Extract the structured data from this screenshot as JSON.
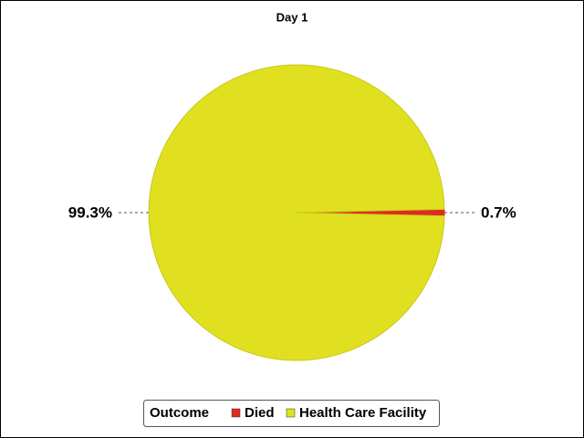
{
  "chart_data": {
    "type": "pie",
    "title": "Day 1",
    "categories": [
      "Died",
      "Health Care Facility"
    ],
    "values": [
      0.7,
      99.3
    ],
    "value_labels": [
      "0.7%",
      "99.3%"
    ],
    "colors": [
      "#e02a20",
      "#e0e020"
    ],
    "legend_title": "Outcome",
    "legend": "bottom"
  }
}
